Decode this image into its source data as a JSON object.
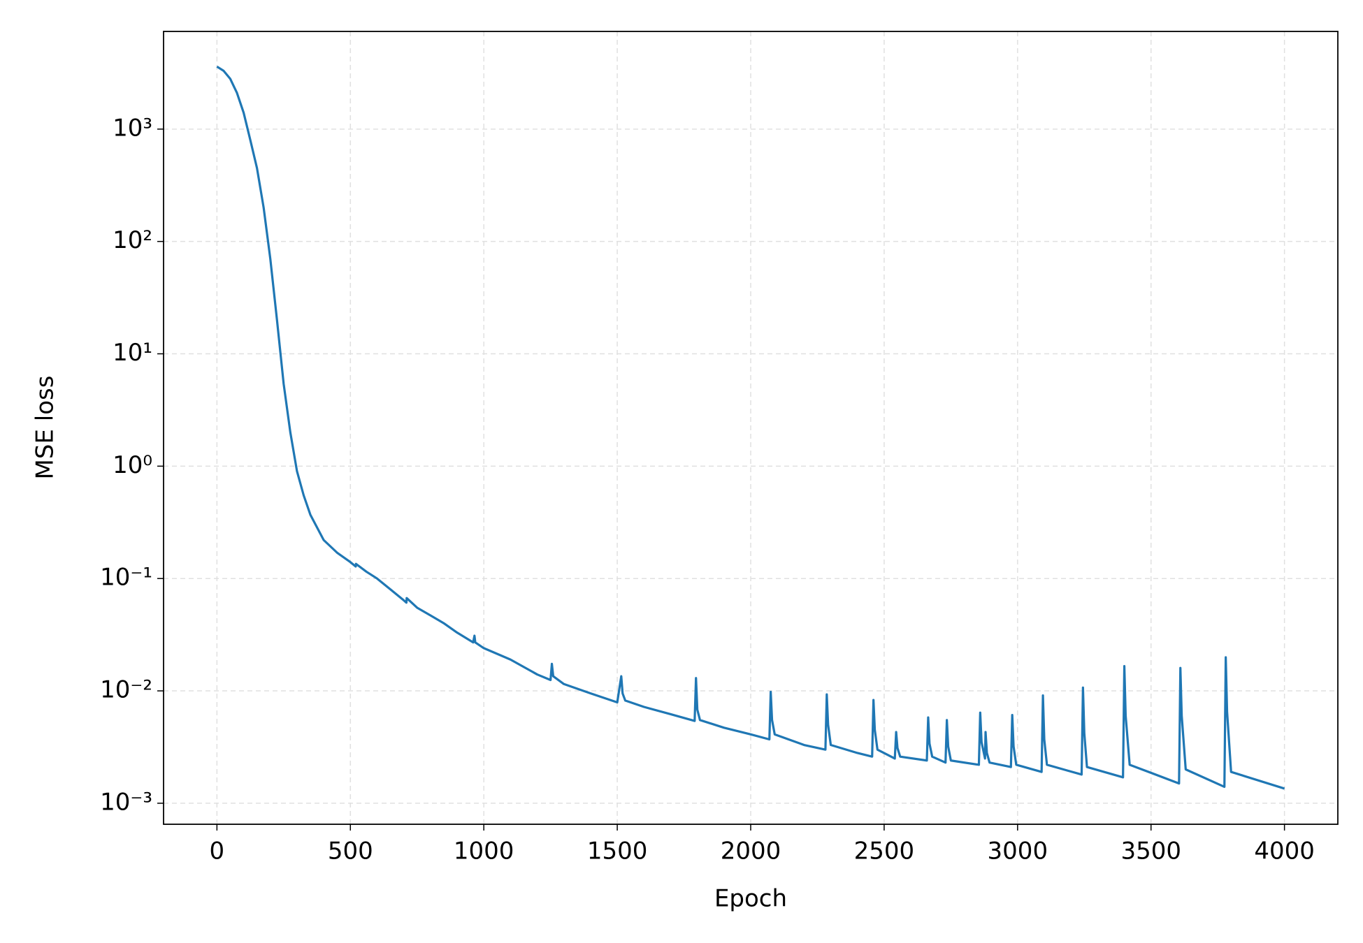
{
  "chart_data": {
    "type": "line",
    "xlabel": "Epoch",
    "ylabel": "MSE loss",
    "x": [
      0,
      25,
      50,
      75,
      100,
      125,
      150,
      175,
      200,
      225,
      250,
      275,
      300,
      325,
      350,
      400,
      450,
      500,
      520,
      521,
      560,
      600,
      650,
      700,
      710,
      711,
      750,
      800,
      850,
      900,
      960,
      965,
      968,
      1000,
      1100,
      1200,
      1250,
      1255,
      1260,
      1300,
      1400,
      1500,
      1515,
      1520,
      1530,
      1600,
      1700,
      1790,
      1795,
      1800,
      1810,
      1900,
      2000,
      2070,
      2075,
      2080,
      2090,
      2200,
      2280,
      2285,
      2290,
      2300,
      2400,
      2455,
      2460,
      2465,
      2475,
      2540,
      2545,
      2550,
      2560,
      2660,
      2665,
      2670,
      2680,
      2730,
      2735,
      2740,
      2750,
      2855,
      2860,
      2865,
      2878,
      2880,
      2885,
      2895,
      2975,
      2980,
      2985,
      2995,
      3090,
      3095,
      3100,
      3110,
      3240,
      3245,
      3250,
      3260,
      3395,
      3400,
      3405,
      3420,
      3605,
      3610,
      3615,
      3630,
      3775,
      3780,
      3785,
      3800,
      4000
    ],
    "values": [
      3600,
      3300,
      2800,
      2100,
      1400,
      800,
      450,
      200,
      70,
      20,
      5.4,
      2,
      0.9,
      0.55,
      0.37,
      0.22,
      0.17,
      0.14,
      0.128,
      0.135,
      0.115,
      0.1,
      0.08,
      0.064,
      0.061,
      0.067,
      0.055,
      0.047,
      0.04,
      0.033,
      0.027,
      0.031,
      0.027,
      0.024,
      0.019,
      0.014,
      0.0125,
      0.0174,
      0.0135,
      0.0115,
      0.0095,
      0.0079,
      0.0135,
      0.0095,
      0.0082,
      0.0072,
      0.0062,
      0.0054,
      0.013,
      0.0068,
      0.0055,
      0.0047,
      0.0041,
      0.0037,
      0.0098,
      0.0055,
      0.0041,
      0.0033,
      0.003,
      0.0093,
      0.005,
      0.0033,
      0.0028,
      0.0026,
      0.0083,
      0.0045,
      0.003,
      0.0025,
      0.0043,
      0.0031,
      0.0026,
      0.0024,
      0.0058,
      0.0034,
      0.0026,
      0.0023,
      0.0055,
      0.0032,
      0.0024,
      0.0022,
      0.0064,
      0.0035,
      0.0025,
      0.0043,
      0.0028,
      0.0023,
      0.0021,
      0.0061,
      0.0032,
      0.0022,
      0.0019,
      0.0091,
      0.0037,
      0.0022,
      0.0018,
      0.0107,
      0.0042,
      0.0021,
      0.0017,
      0.0166,
      0.006,
      0.0022,
      0.0015,
      0.016,
      0.006,
      0.002,
      0.0014,
      0.0199,
      0.0065,
      0.0019,
      0.00135
    ],
    "color": "#1f77b4",
    "xlim": [
      -200,
      4200
    ],
    "xticks": [
      0,
      500,
      1000,
      1500,
      2000,
      2500,
      3000,
      3500,
      4000
    ],
    "ylim": [
      0.00065,
      7400
    ],
    "log_y": true,
    "yticks": [
      {
        "value": 0.001,
        "label": "10⁻³"
      },
      {
        "value": 0.01,
        "label": "10⁻²"
      },
      {
        "value": 0.1,
        "label": "10⁻¹"
      },
      {
        "value": 1,
        "label": "10⁰"
      },
      {
        "value": 10,
        "label": "10¹"
      },
      {
        "value": 100,
        "label": "10²"
      },
      {
        "value": 1000,
        "label": "10³"
      }
    ],
    "grid": true
  }
}
